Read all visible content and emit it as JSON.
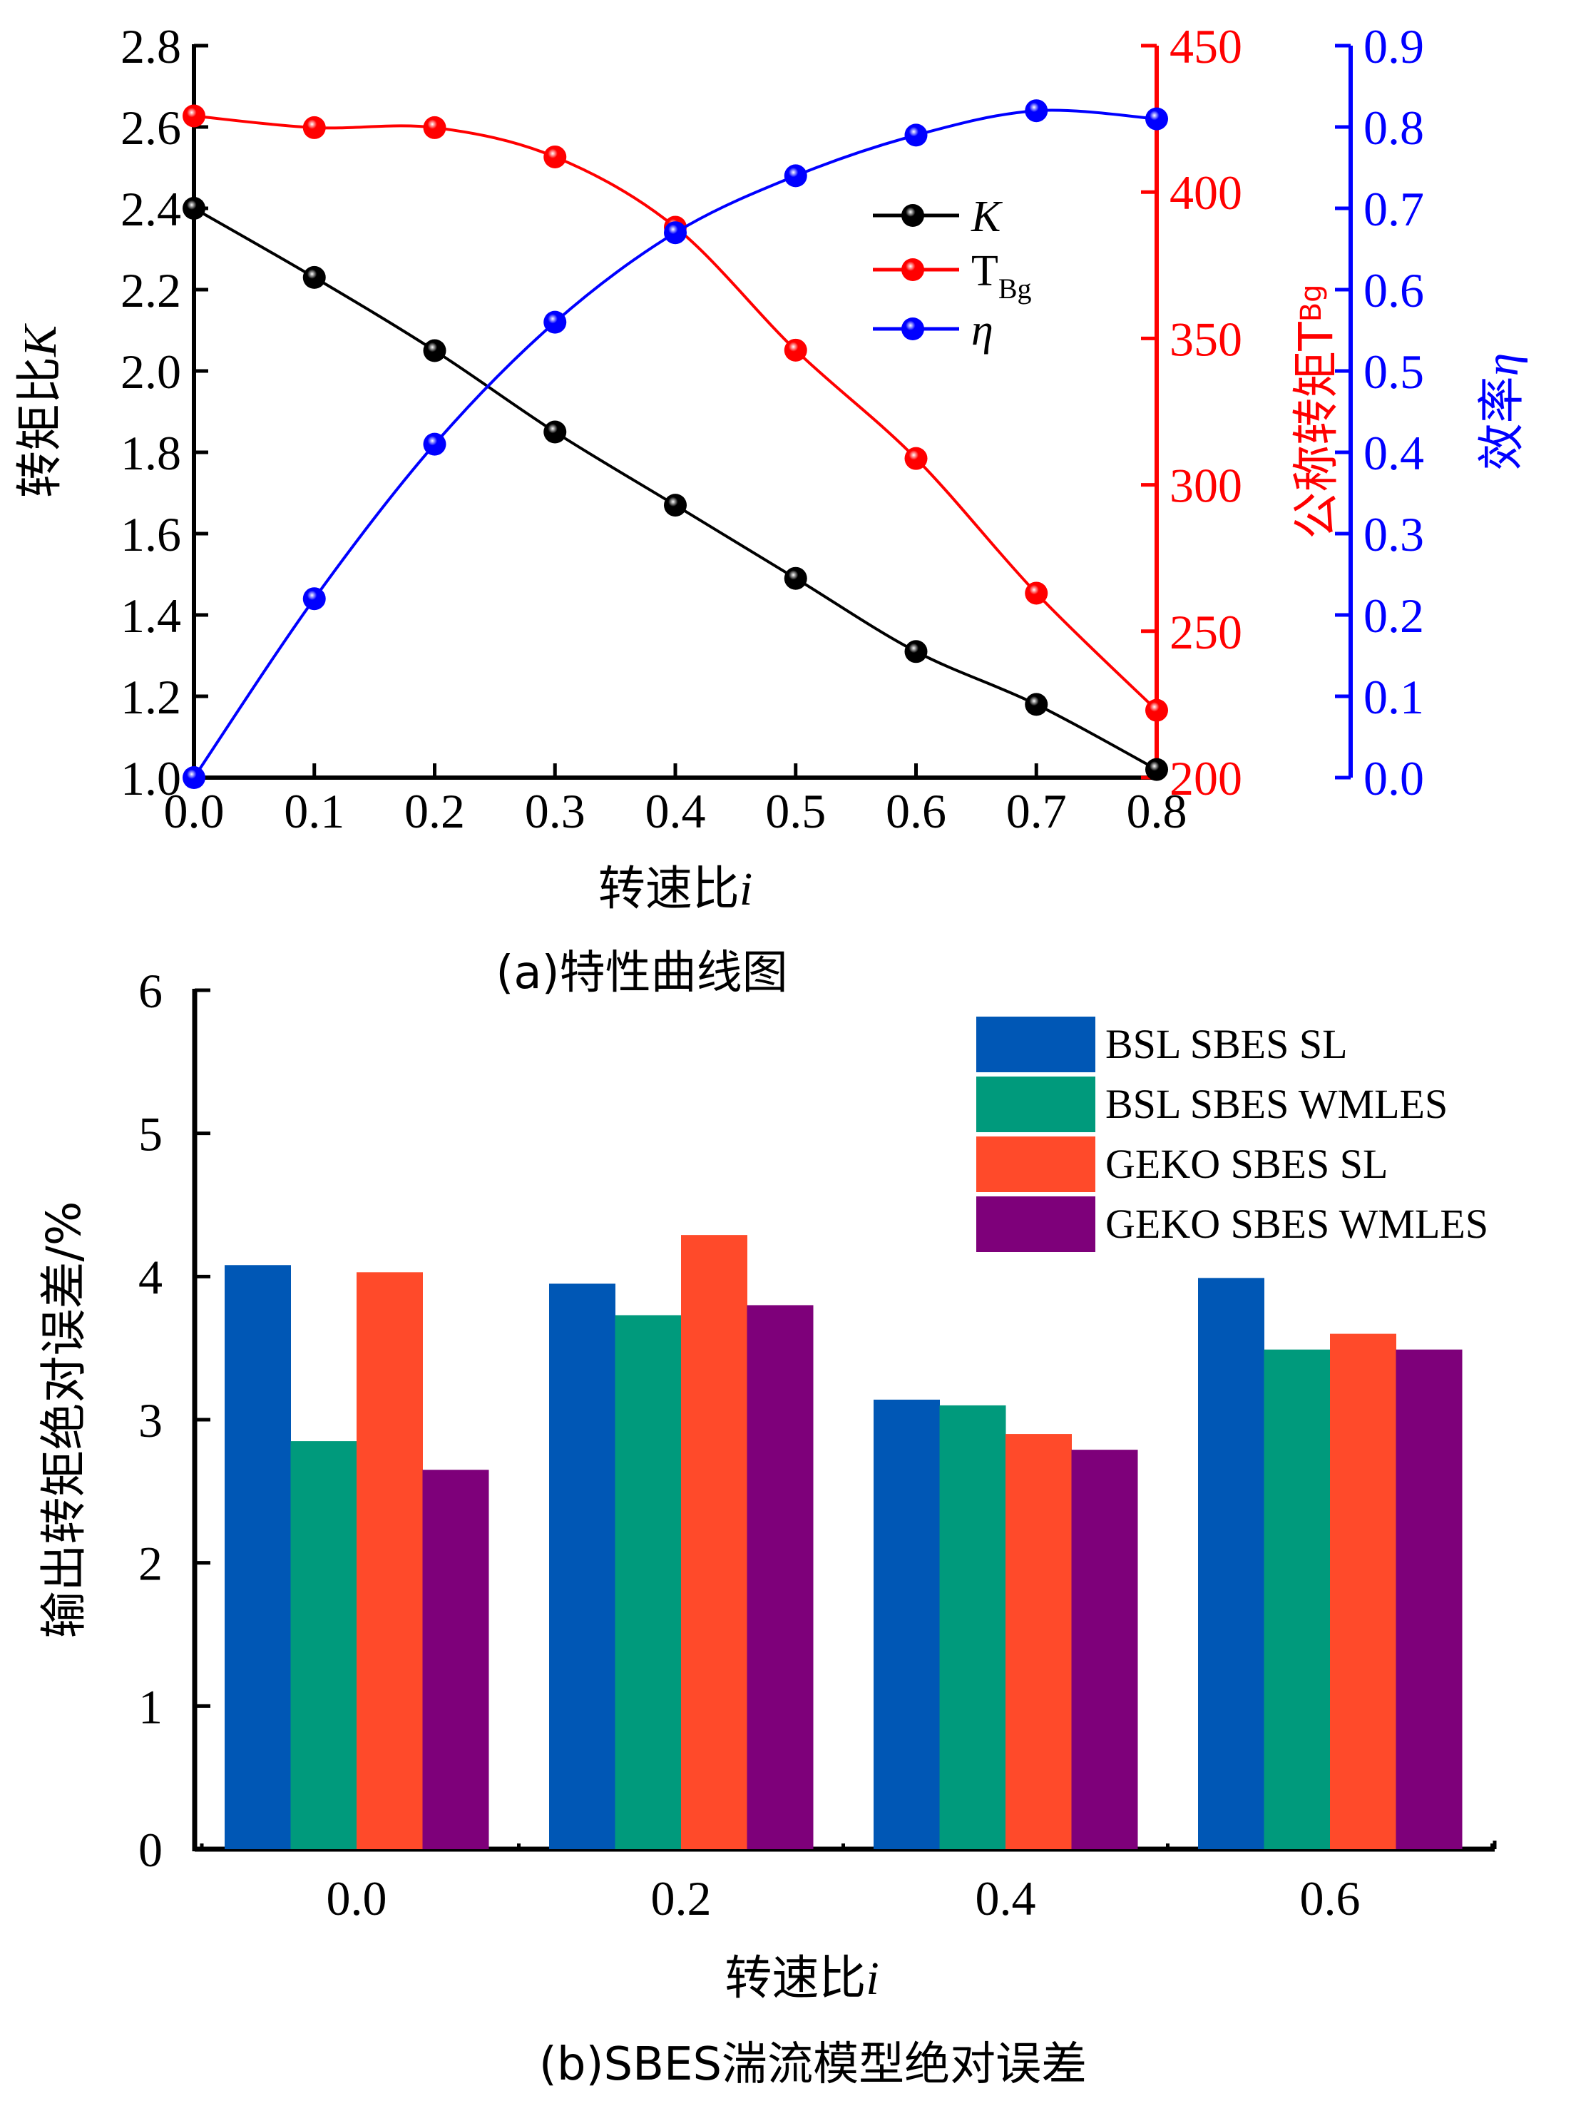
{
  "chart_data": [
    {
      "id": "a",
      "type": "line",
      "caption": "(a)特性曲线图",
      "xlabel_prefix": "转速比",
      "xlabel_var": "i",
      "xlim": [
        0.0,
        0.8
      ],
      "x_ticks": [
        "0.0",
        "0.1",
        "0.2",
        "0.3",
        "0.4",
        "0.5",
        "0.6",
        "0.7",
        "0.8"
      ],
      "x": [
        0.0,
        0.1,
        0.2,
        0.3,
        0.4,
        0.5,
        0.6,
        0.7,
        0.8
      ],
      "axes": {
        "left": {
          "label_prefix": "转矩比",
          "label_var": "K",
          "ylim": [
            1.0,
            2.8
          ],
          "ticks": [
            "1.0",
            "1.2",
            "1.4",
            "1.6",
            "1.8",
            "2.0",
            "2.2",
            "2.4",
            "2.6",
            "2.8"
          ],
          "color": "#000000"
        },
        "right1": {
          "label_prefix": "公称转矩",
          "label_var": "T",
          "label_sub": "Bg",
          "ylim": [
            200,
            450
          ],
          "ticks": [
            "200",
            "250",
            "300",
            "350",
            "400",
            "450"
          ],
          "color": "#ff0000"
        },
        "right2": {
          "label_prefix": "效率",
          "label_var": "η",
          "ylim": [
            0.0,
            0.9
          ],
          "ticks": [
            "0.0",
            "0.1",
            "0.2",
            "0.3",
            "0.4",
            "0.5",
            "0.6",
            "0.7",
            "0.8",
            "0.9"
          ],
          "color": "#0000ff"
        }
      },
      "series": [
        {
          "name": "K",
          "axis": "left",
          "color": "#000000",
          "values": [
            2.4,
            2.23,
            2.05,
            1.85,
            1.67,
            1.49,
            1.31,
            1.18,
            1.02
          ]
        },
        {
          "name": "T",
          "name_sub": "Bg",
          "axis": "right1",
          "color": "#ff0000",
          "values": [
            426,
            422,
            422,
            412,
            388,
            346,
            309,
            263,
            223
          ]
        },
        {
          "name": "η",
          "axis": "right2",
          "color": "#0000ff",
          "values": [
            0.0,
            0.22,
            0.41,
            0.56,
            0.67,
            0.74,
            0.79,
            0.82,
            0.81
          ]
        }
      ],
      "legend": {
        "position": "upper-right-center",
        "entries": [
          "K",
          "TBg",
          "η"
        ]
      },
      "grid": false
    },
    {
      "id": "b",
      "type": "bar",
      "caption": "(b)SBES湍流模型绝对误差",
      "xlabel_prefix": "转速比",
      "xlabel_var": "i",
      "ylabel": "输出转矩绝对误差/%",
      "ylim": [
        0,
        6
      ],
      "y_ticks": [
        "0",
        "1",
        "2",
        "3",
        "4",
        "5",
        "6"
      ],
      "categories": [
        "0.0",
        "0.2",
        "0.4",
        "0.6"
      ],
      "series": [
        {
          "name": "BSL SBES SL",
          "color": "#0057b5",
          "values": [
            4.08,
            3.95,
            3.14,
            3.99
          ]
        },
        {
          "name": "BSL SBES WMLES",
          "color": "#009a7c",
          "values": [
            2.85,
            3.73,
            3.1,
            3.49
          ]
        },
        {
          "name": "GEKO SBES SL",
          "color": "#ff4a2a",
          "values": [
            4.03,
            4.29,
            2.9,
            3.6
          ]
        },
        {
          "name": "GEKO SBES WMLES",
          "color": "#7e007a",
          "values": [
            2.65,
            3.8,
            2.79,
            3.49
          ]
        }
      ],
      "legend": {
        "position": "top-right"
      },
      "grid": false
    }
  ]
}
